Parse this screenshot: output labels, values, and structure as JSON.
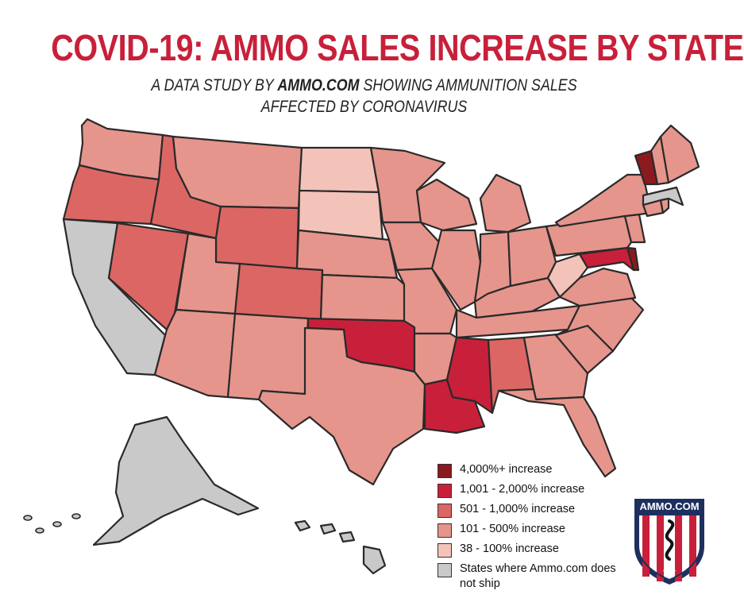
{
  "header": {
    "title": "COVID-19: AMMO SALES INCREASE BY STATE",
    "subtitle_pre": "A DATA STUDY BY ",
    "subtitle_brand": "AMMO.COM",
    "subtitle_post": " SHOWING AMMUNITION SALES",
    "subtitle_line2": "AFFECTED BY CORONAVIRUS"
  },
  "colors": {
    "title": "#c8203a",
    "border": "#2a2a2a",
    "cat_4000": "#8b1a1e",
    "cat_1001": "#c8203a",
    "cat_501": "#dc6663",
    "cat_101": "#e6958c",
    "cat_38": "#f3c3ba",
    "no_ship": "#c9c9c9"
  },
  "legend": [
    {
      "key": "cat_4000",
      "label": "4,000%+ increase"
    },
    {
      "key": "cat_1001",
      "label": "1,001 - 2,000% increase"
    },
    {
      "key": "cat_501",
      "label": "501 - 1,000% increase"
    },
    {
      "key": "cat_101",
      "label": "101 - 500% increase"
    },
    {
      "key": "cat_38",
      "label": "38 - 100% increase"
    },
    {
      "key": "no_ship",
      "label": "States where Ammo.com does not ship"
    }
  ],
  "map": {
    "states": [
      {
        "code": "WA",
        "cat": "cat_101"
      },
      {
        "code": "OR",
        "cat": "cat_501"
      },
      {
        "code": "CA",
        "cat": "no_ship"
      },
      {
        "code": "ID",
        "cat": "cat_501"
      },
      {
        "code": "NV",
        "cat": "cat_501"
      },
      {
        "code": "MT",
        "cat": "cat_101"
      },
      {
        "code": "WY",
        "cat": "cat_501"
      },
      {
        "code": "UT",
        "cat": "cat_101"
      },
      {
        "code": "AZ",
        "cat": "cat_101"
      },
      {
        "code": "CO",
        "cat": "cat_501"
      },
      {
        "code": "NM",
        "cat": "cat_101"
      },
      {
        "code": "ND",
        "cat": "cat_38"
      },
      {
        "code": "SD",
        "cat": "cat_38"
      },
      {
        "code": "NE",
        "cat": "cat_101"
      },
      {
        "code": "KS",
        "cat": "cat_101"
      },
      {
        "code": "OK",
        "cat": "cat_1001"
      },
      {
        "code": "TX",
        "cat": "cat_101"
      },
      {
        "code": "MN",
        "cat": "cat_101"
      },
      {
        "code": "IA",
        "cat": "cat_101"
      },
      {
        "code": "MO",
        "cat": "cat_101"
      },
      {
        "code": "AR",
        "cat": "cat_101"
      },
      {
        "code": "LA",
        "cat": "cat_1001"
      },
      {
        "code": "WI",
        "cat": "cat_101"
      },
      {
        "code": "IL",
        "cat": "cat_101"
      },
      {
        "code": "MS",
        "cat": "cat_1001"
      },
      {
        "code": "MI",
        "cat": "cat_101"
      },
      {
        "code": "IN",
        "cat": "cat_101"
      },
      {
        "code": "KY",
        "cat": "cat_101"
      },
      {
        "code": "TN",
        "cat": "cat_101"
      },
      {
        "code": "AL",
        "cat": "cat_501"
      },
      {
        "code": "OH",
        "cat": "cat_101"
      },
      {
        "code": "GA",
        "cat": "cat_101"
      },
      {
        "code": "FL",
        "cat": "cat_101"
      },
      {
        "code": "SC",
        "cat": "cat_101"
      },
      {
        "code": "NC",
        "cat": "cat_101"
      },
      {
        "code": "VA",
        "cat": "cat_101"
      },
      {
        "code": "WV",
        "cat": "cat_38"
      },
      {
        "code": "MD",
        "cat": "cat_1001"
      },
      {
        "code": "DE",
        "cat": "cat_4000"
      },
      {
        "code": "PA",
        "cat": "cat_101"
      },
      {
        "code": "NJ",
        "cat": "cat_101"
      },
      {
        "code": "NY",
        "cat": "cat_101"
      },
      {
        "code": "CT",
        "cat": "cat_101"
      },
      {
        "code": "RI",
        "cat": "cat_101"
      },
      {
        "code": "MA",
        "cat": "no_ship"
      },
      {
        "code": "VT",
        "cat": "cat_4000"
      },
      {
        "code": "NH",
        "cat": "cat_101"
      },
      {
        "code": "ME",
        "cat": "cat_101"
      },
      {
        "code": "AK",
        "cat": "no_ship"
      },
      {
        "code": "HI",
        "cat": "no_ship"
      }
    ]
  },
  "logo": {
    "text": "AMMO.COM"
  }
}
